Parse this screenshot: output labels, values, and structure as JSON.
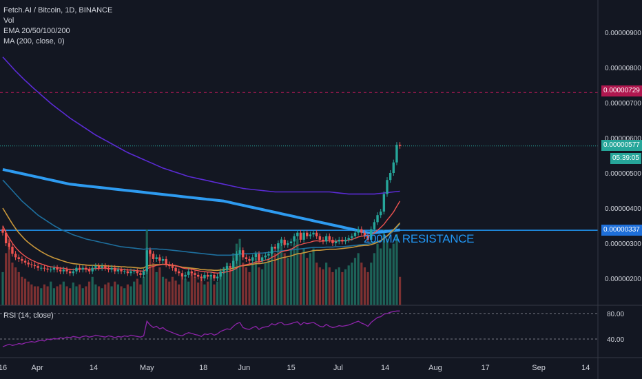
{
  "legend": {
    "title": "Fetch.AI / Bitcoin, 1D, BINANCE",
    "vol": "Vol",
    "ema": "EMA 20/50/100/200",
    "ma": "MA (200, close, 0)"
  },
  "rsi_label": "RSI (14, close)",
  "annotation": "200MA RESISTANCE",
  "tags": {
    "resistance_high": "0.00000729",
    "last_price": "0.00000577",
    "countdown": "05:39:05",
    "resistance_200ma": "0.00000337"
  },
  "colors": {
    "background": "#131722",
    "up": "#26a69a",
    "down": "#ef5350",
    "ma200": "#5b2bd6",
    "ema20": "#ef5350",
    "ema50": "#c8973a",
    "ema100": "#1e6f9e",
    "ema200": "#2e9bf0",
    "rsi": "#8e24aa",
    "resistance_line": "#2196f3",
    "dashed_line": "#c2185b"
  },
  "chart_data": {
    "type": "candlestick",
    "price_axis": [
      "0.00000900",
      "0.00000800",
      "0.00000700",
      "0.00000600",
      "0.00000500",
      "0.00000400",
      "0.00000300",
      "0.00000200"
    ],
    "price_ticks": [
      9.0,
      8.0,
      7.0,
      6.0,
      5.0,
      4.0,
      3.0,
      2.0
    ],
    "rsi_axis": [
      "80.00",
      "40.00"
    ],
    "rsi_ticks": [
      80,
      40
    ],
    "x_labels": [
      "16",
      "Apr",
      "14",
      "May",
      "18",
      "Jun",
      "15",
      "Jul",
      "14",
      "Aug",
      "17",
      "Sep",
      "14"
    ],
    "x_label_positions_days": [
      0,
      11,
      29,
      46,
      64,
      77,
      92,
      107,
      122,
      138,
      154,
      171,
      186
    ],
    "levels": {
      "resistance_high": 7.29,
      "last_price": 5.77,
      "ma200_resistance": 3.37
    },
    "close": [
      3.3,
      3.0,
      2.9,
      2.7,
      2.6,
      2.55,
      2.5,
      2.45,
      2.4,
      2.38,
      2.35,
      2.3,
      2.3,
      2.28,
      2.25,
      2.25,
      2.3,
      2.25,
      2.2,
      2.25,
      2.2,
      2.15,
      2.2,
      2.3,
      2.25,
      2.3,
      2.25,
      2.2,
      2.3,
      2.35,
      2.3,
      2.35,
      2.3,
      2.25,
      2.3,
      2.2,
      2.25,
      2.2,
      2.2,
      2.15,
      2.2,
      2.2,
      2.15,
      2.1,
      2.2,
      2.8,
      2.7,
      2.55,
      2.6,
      2.5,
      2.55,
      2.4,
      2.35,
      2.3,
      2.2,
      2.15,
      2.05,
      2.1,
      2.2,
      2.15,
      2.1,
      2.05,
      2.0,
      2.1,
      2.05,
      2.1,
      2.0,
      2.05,
      2.2,
      2.25,
      2.35,
      2.3,
      2.5,
      2.7,
      2.8,
      2.6,
      2.55,
      2.5,
      2.6,
      2.7,
      2.5,
      2.6,
      2.65,
      2.7,
      2.9,
      2.85,
      3.0,
      3.1,
      2.95,
      3.0,
      3.05,
      3.2,
      3.3,
      3.1,
      3.3,
      3.2,
      3.25,
      3.3,
      3.2,
      3.1,
      3.05,
      3.2,
      3.1,
      3.0,
      3.05,
      3.1,
      3.05,
      3.1,
      3.15,
      3.2,
      3.3,
      3.4,
      3.3,
      3.2,
      3.1,
      3.4,
      3.6,
      3.8,
      3.9,
      4.4,
      4.8,
      5.0,
      5.3,
      5.8,
      5.77
    ],
    "volume": [
      35,
      55,
      70,
      45,
      40,
      35,
      30,
      28,
      25,
      22,
      20,
      20,
      18,
      22,
      20,
      25,
      18,
      20,
      22,
      25,
      20,
      18,
      24,
      20,
      22,
      18,
      20,
      25,
      30,
      22,
      20,
      18,
      22,
      24,
      20,
      25,
      22,
      20,
      18,
      22,
      20,
      25,
      28,
      22,
      30,
      80,
      60,
      45,
      35,
      40,
      30,
      28,
      25,
      30,
      26,
      22,
      30,
      28,
      25,
      35,
      30,
      24,
      28,
      22,
      25,
      30,
      22,
      25,
      35,
      40,
      45,
      38,
      55,
      65,
      70,
      45,
      40,
      35,
      45,
      50,
      40,
      38,
      45,
      50,
      60,
      55,
      65,
      70,
      55,
      50,
      60,
      65,
      70,
      55,
      60,
      50,
      55,
      60,
      45,
      40,
      38,
      45,
      40,
      35,
      38,
      40,
      35,
      38,
      42,
      45,
      50,
      55,
      45,
      40,
      35,
      45,
      55,
      65,
      60,
      80,
      70,
      60,
      65,
      75,
      30
    ],
    "rsi": [
      28,
      30,
      32,
      30,
      31,
      33,
      32,
      34,
      35,
      36,
      35,
      37,
      38,
      37,
      40,
      39,
      41,
      40,
      42,
      41,
      43,
      42,
      44,
      43,
      42,
      44,
      45,
      43,
      44,
      46,
      45,
      44,
      43,
      45,
      44,
      42,
      44,
      43,
      45,
      44,
      46,
      45,
      44,
      43,
      45,
      68,
      62,
      58,
      60,
      56,
      58,
      54,
      52,
      50,
      48,
      46,
      45,
      48,
      50,
      49,
      47,
      46,
      44,
      48,
      47,
      49,
      46,
      48,
      52,
      54,
      56,
      55,
      60,
      64,
      66,
      58,
      56,
      55,
      58,
      60,
      55,
      58,
      59,
      60,
      64,
      62,
      65,
      66,
      62,
      63,
      64,
      66,
      67,
      62,
      66,
      64,
      65,
      66,
      63,
      60,
      59,
      63,
      60,
      58,
      59,
      61,
      60,
      61,
      62,
      64,
      66,
      68,
      65,
      63,
      60,
      66,
      70,
      74,
      75,
      79,
      80,
      82,
      83,
      84,
      84
    ],
    "ma200": [
      8.3,
      8.2,
      8.1,
      8.0,
      7.9,
      7.81,
      7.72,
      7.63,
      7.55,
      7.46,
      7.38,
      7.3,
      7.22,
      7.14,
      7.06,
      6.98,
      6.91,
      6.84,
      6.77,
      6.7,
      6.63,
      6.56,
      6.5,
      6.44,
      6.38,
      6.32,
      6.26,
      6.2,
      6.14,
      6.08,
      6.03,
      5.98,
      5.93,
      5.88,
      5.83,
      5.78,
      5.73,
      5.68,
      5.63,
      5.58,
      5.54,
      5.5,
      5.46,
      5.42,
      5.38,
      5.34,
      5.3,
      5.26,
      5.22,
      5.18,
      5.14,
      5.11,
      5.08,
      5.05,
      5.02,
      4.99,
      4.96,
      4.93,
      4.9,
      4.88,
      4.86,
      4.84,
      4.82,
      4.8,
      4.78,
      4.76,
      4.74,
      4.72,
      4.7,
      4.68,
      4.66,
      4.64,
      4.62,
      4.6,
      4.58,
      4.56,
      4.55,
      4.54,
      4.53,
      4.52,
      4.51,
      4.5,
      4.49,
      4.48,
      4.47,
      4.46,
      4.46,
      4.46,
      4.46,
      4.46,
      4.46,
      4.46,
      4.46,
      4.46,
      4.46,
      4.46,
      4.46,
      4.46,
      4.46,
      4.46,
      4.46,
      4.46,
      4.46,
      4.45,
      4.44,
      4.43,
      4.42,
      4.41,
      4.4,
      4.4,
      4.4,
      4.4,
      4.4,
      4.4,
      4.4,
      4.4,
      4.4,
      4.41,
      4.42,
      4.43,
      4.44,
      4.45,
      4.46,
      4.47,
      4.48
    ],
    "ema200": [
      5.1,
      5.08,
      5.06,
      5.04,
      5.02,
      5.0,
      4.98,
      4.96,
      4.94,
      4.92,
      4.9,
      4.88,
      4.86,
      4.84,
      4.82,
      4.8,
      4.78,
      4.76,
      4.74,
      4.72,
      4.7,
      4.68,
      4.67,
      4.66,
      4.65,
      4.64,
      4.63,
      4.62,
      4.61,
      4.6,
      4.59,
      4.58,
      4.57,
      4.56,
      4.55,
      4.54,
      4.53,
      4.52,
      4.51,
      4.5,
      4.49,
      4.48,
      4.47,
      4.46,
      4.45,
      4.44,
      4.43,
      4.42,
      4.41,
      4.4,
      4.39,
      4.38,
      4.37,
      4.36,
      4.35,
      4.34,
      4.33,
      4.32,
      4.31,
      4.3,
      4.29,
      4.28,
      4.27,
      4.26,
      4.25,
      4.24,
      4.23,
      4.22,
      4.21,
      4.2,
      4.18,
      4.16,
      4.14,
      4.12,
      4.1,
      4.08,
      4.06,
      4.04,
      4.02,
      4.0,
      3.98,
      3.96,
      3.94,
      3.92,
      3.9,
      3.88,
      3.86,
      3.84,
      3.82,
      3.8,
      3.78,
      3.76,
      3.74,
      3.72,
      3.7,
      3.68,
      3.66,
      3.64,
      3.62,
      3.6,
      3.58,
      3.56,
      3.54,
      3.52,
      3.5,
      3.48,
      3.46,
      3.44,
      3.42,
      3.4,
      3.38,
      3.36,
      3.34,
      3.32,
      3.3,
      3.3,
      3.3,
      3.31,
      3.32,
      3.33,
      3.34,
      3.35,
      3.36,
      3.37,
      3.38
    ],
    "ema100": [
      4.8,
      4.7,
      4.6,
      4.5,
      4.4,
      4.3,
      4.2,
      4.12,
      4.04,
      3.96,
      3.88,
      3.8,
      3.74,
      3.68,
      3.62,
      3.56,
      3.5,
      3.45,
      3.4,
      3.36,
      3.32,
      3.28,
      3.24,
      3.21,
      3.18,
      3.15,
      3.12,
      3.1,
      3.08,
      3.06,
      3.04,
      3.02,
      3.0,
      2.98,
      2.96,
      2.94,
      2.92,
      2.9,
      2.89,
      2.88,
      2.87,
      2.86,
      2.85,
      2.84,
      2.83,
      2.84,
      2.84,
      2.84,
      2.84,
      2.83,
      2.83,
      2.82,
      2.81,
      2.8,
      2.79,
      2.78,
      2.77,
      2.76,
      2.75,
      2.74,
      2.73,
      2.72,
      2.71,
      2.7,
      2.69,
      2.68,
      2.67,
      2.66,
      2.66,
      2.66,
      2.66,
      2.66,
      2.67,
      2.68,
      2.69,
      2.7,
      2.7,
      2.7,
      2.71,
      2.72,
      2.72,
      2.72,
      2.73,
      2.74,
      2.75,
      2.76,
      2.77,
      2.78,
      2.79,
      2.8,
      2.81,
      2.82,
      2.83,
      2.84,
      2.85,
      2.86,
      2.87,
      2.88,
      2.88,
      2.88,
      2.88,
      2.89,
      2.89,
      2.89,
      2.9,
      2.9,
      2.9,
      2.91,
      2.92,
      2.93,
      2.94,
      2.95,
      2.96,
      2.97,
      2.98,
      3.0,
      3.02,
      3.05,
      3.08,
      3.14,
      3.2,
      3.27,
      3.35,
      3.45,
      3.55
    ],
    "ema50": [
      4.0,
      3.85,
      3.7,
      3.55,
      3.42,
      3.3,
      3.2,
      3.1,
      3.02,
      2.95,
      2.88,
      2.82,
      2.76,
      2.71,
      2.66,
      2.62,
      2.58,
      2.55,
      2.52,
      2.49,
      2.46,
      2.44,
      2.42,
      2.41,
      2.4,
      2.39,
      2.38,
      2.37,
      2.37,
      2.37,
      2.36,
      2.36,
      2.36,
      2.35,
      2.35,
      2.34,
      2.34,
      2.33,
      2.33,
      2.32,
      2.32,
      2.31,
      2.3,
      2.29,
      2.3,
      2.35,
      2.37,
      2.38,
      2.39,
      2.39,
      2.4,
      2.39,
      2.38,
      2.37,
      2.36,
      2.34,
      2.32,
      2.31,
      2.3,
      2.29,
      2.28,
      2.27,
      2.25,
      2.25,
      2.24,
      2.24,
      2.23,
      2.23,
      2.24,
      2.25,
      2.26,
      2.27,
      2.29,
      2.32,
      2.35,
      2.36,
      2.37,
      2.38,
      2.4,
      2.42,
      2.42,
      2.43,
      2.45,
      2.47,
      2.5,
      2.52,
      2.55,
      2.58,
      2.6,
      2.62,
      2.64,
      2.67,
      2.7,
      2.71,
      2.73,
      2.75,
      2.77,
      2.79,
      2.8,
      2.8,
      2.81,
      2.82,
      2.83,
      2.83,
      2.83,
      2.84,
      2.85,
      2.86,
      2.87,
      2.88,
      2.9,
      2.92,
      2.93,
      2.94,
      2.94,
      2.96,
      2.99,
      3.03,
      3.07,
      3.14,
      3.21,
      3.3,
      3.38,
      3.48,
      3.58
    ],
    "ema20": [
      3.5,
      3.3,
      3.15,
      3.0,
      2.88,
      2.78,
      2.7,
      2.63,
      2.57,
      2.52,
      2.48,
      2.44,
      2.41,
      2.38,
      2.35,
      2.33,
      2.32,
      2.31,
      2.29,
      2.29,
      2.27,
      2.25,
      2.25,
      2.26,
      2.26,
      2.27,
      2.27,
      2.26,
      2.27,
      2.28,
      2.28,
      2.29,
      2.29,
      2.28,
      2.28,
      2.27,
      2.27,
      2.26,
      2.25,
      2.24,
      2.24,
      2.23,
      2.22,
      2.21,
      2.21,
      2.27,
      2.32,
      2.34,
      2.37,
      2.38,
      2.4,
      2.4,
      2.39,
      2.38,
      2.36,
      2.34,
      2.3,
      2.28,
      2.27,
      2.26,
      2.24,
      2.22,
      2.2,
      2.19,
      2.18,
      2.18,
      2.16,
      2.15,
      2.16,
      2.17,
      2.19,
      2.21,
      2.24,
      2.29,
      2.35,
      2.37,
      2.39,
      2.41,
      2.43,
      2.47,
      2.47,
      2.49,
      2.52,
      2.54,
      2.6,
      2.64,
      2.7,
      2.76,
      2.78,
      2.8,
      2.83,
      2.88,
      2.94,
      2.96,
      2.99,
      3.01,
      3.03,
      3.06,
      3.07,
      3.06,
      3.06,
      3.07,
      3.07,
      3.06,
      3.06,
      3.07,
      3.07,
      3.08,
      3.09,
      3.11,
      3.14,
      3.18,
      3.2,
      3.21,
      3.21,
      3.24,
      3.3,
      3.37,
      3.45,
      3.54,
      3.66,
      3.77,
      3.89,
      4.05,
      4.2
    ]
  }
}
